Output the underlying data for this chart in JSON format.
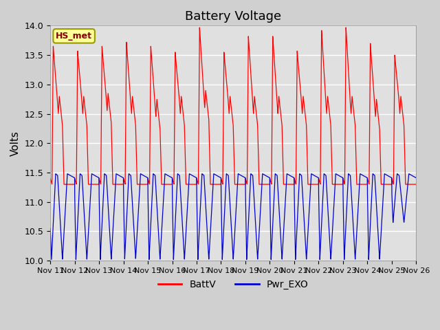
{
  "title": "Battery Voltage",
  "ylabel": "Volts",
  "ylim": [
    10.0,
    14.0
  ],
  "plot_bg_color": "#e0e0e0",
  "fig_bg_color": "#d0d0d0",
  "annotation_text": "HS_met",
  "annotation_bg": "#ffff99",
  "annotation_border": "#999900",
  "annotation_text_color": "#880000",
  "x_tick_labels": [
    "Nov 11",
    "Nov 12",
    "Nov 13",
    "Nov 14",
    "Nov 15",
    "Nov 16",
    "Nov 17",
    "Nov 18",
    "Nov 19",
    "Nov 20",
    "Nov 21",
    "Nov 22",
    "Nov 23",
    "Nov 24",
    "Nov 25",
    "Nov 26"
  ],
  "num_days": 15,
  "red_line_color": "#ff0000",
  "blue_line_color": "#0000cc",
  "legend_entries": [
    "BattV",
    "Pwr_EXO"
  ],
  "yticks": [
    10.0,
    10.5,
    11.0,
    11.5,
    12.0,
    12.5,
    13.0,
    13.5,
    14.0
  ],
  "red_peaks": [
    13.65,
    13.57,
    13.65,
    13.72,
    13.65,
    13.55,
    13.97,
    13.55,
    13.82,
    13.82,
    13.57,
    13.92,
    13.97,
    13.7,
    13.5
  ],
  "red_dips": [
    12.5,
    12.5,
    12.55,
    12.5,
    12.45,
    12.5,
    12.6,
    12.5,
    12.5,
    12.5,
    12.5,
    12.5,
    12.5,
    12.45,
    12.5
  ],
  "blue_mins": [
    10.02,
    10.02,
    10.02,
    10.03,
    10.02,
    10.02,
    10.02,
    10.02,
    10.02,
    10.02,
    10.02,
    10.02,
    10.02,
    10.02,
    10.65
  ],
  "blue_start": [
    10.55,
    11.15,
    11.15,
    11.2,
    11.2,
    11.2,
    11.2,
    11.2,
    11.2,
    11.18,
    11.18,
    11.18,
    11.18,
    11.18,
    11.15
  ]
}
